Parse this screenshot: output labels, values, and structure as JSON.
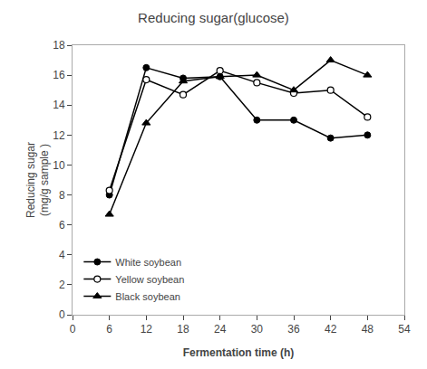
{
  "chart_data": {
    "type": "line",
    "title": "Reducing sugar(glucose)",
    "x_label": "Fermentation time (h)",
    "y_label": "Reducing sugar\n(mg/g sample )",
    "x": [
      6,
      12,
      18,
      24,
      30,
      36,
      42,
      48
    ],
    "series": [
      {
        "name": "White soybean",
        "color": "#000000",
        "marker": "circle",
        "values": [
          8.0,
          16.5,
          15.8,
          15.9,
          13.0,
          13.0,
          11.8,
          12.0
        ]
      },
      {
        "name": "Yellow soybean",
        "color": "#000000",
        "marker": "open_circle",
        "values": [
          8.3,
          15.7,
          14.7,
          16.3,
          15.5,
          14.8,
          15.0,
          13.2
        ]
      },
      {
        "name": "Black soybean",
        "color": "#000000",
        "marker": "triangle",
        "values": [
          6.7,
          12.8,
          15.6,
          15.9,
          16.0,
          15.0,
          17.0,
          16.0
        ]
      }
    ],
    "xlim": [
      0,
      54
    ],
    "ylim": [
      0,
      18
    ],
    "xticks": [
      0,
      6,
      12,
      18,
      24,
      30,
      36,
      42,
      48,
      54
    ],
    "yticks": [
      0,
      2,
      4,
      6,
      8,
      10,
      12,
      14,
      16,
      18
    ],
    "grid": false,
    "legend": "lower left"
  }
}
